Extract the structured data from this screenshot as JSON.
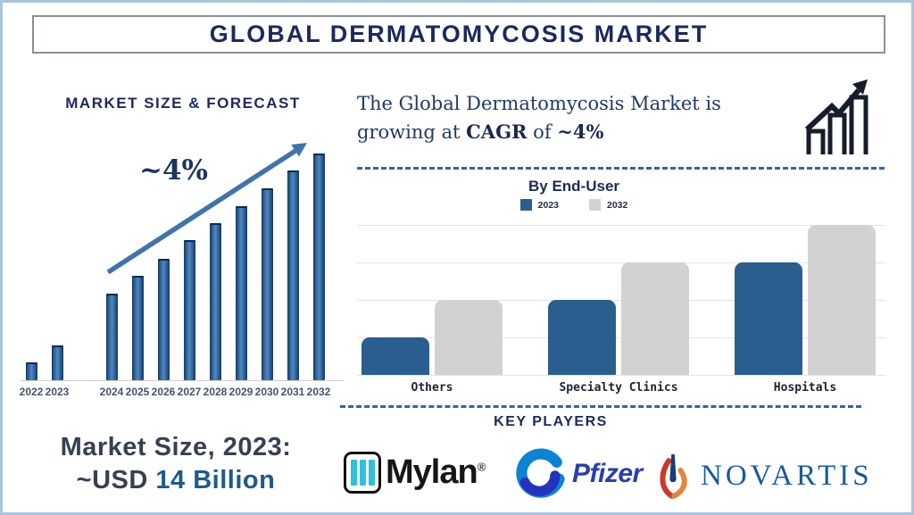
{
  "title": "GLOBAL DERMATOMYCOSIS MARKET",
  "colors": {
    "navy_heading": "#1b2a5c",
    "forecast_bar_blue": "#2e6399",
    "arrow_blue": "#3f74ab",
    "enduser_blue": "#2a5e8f",
    "enduser_gray": "#d2d2d2",
    "dashed_line_blue": "#3465a0",
    "market_size_accent": "#1e5a8c",
    "mylan_cyan": "#30c0dc",
    "pfizer_blue": "#2b3db2",
    "novartis_blue": "#155a9e",
    "novartis_flame_red": "#cc3927",
    "novartis_flame_orange": "#e2853f"
  },
  "left_panel": {
    "heading": "MARKET SIZE & FORECAST",
    "growth_annotation": "~4%",
    "market_size": {
      "line1": "Market Size, 2023:",
      "line2_prefix": "~USD ",
      "line2_value": "14 Billion"
    }
  },
  "right_panel": {
    "description": {
      "line1": "The Global Dermatomycosis Market is",
      "line2_prefix": "growing at ",
      "bold1": "CAGR",
      "mid": " of ",
      "bold2": "~4%"
    },
    "enduser_title": "By End-User",
    "legend": [
      {
        "label": "2023",
        "color": "#2a5e8f"
      },
      {
        "label": "2032",
        "color": "#d2d2d2"
      }
    ],
    "keyplayers_title": "KEY PLAYERS",
    "companies": [
      {
        "name": "Mylan",
        "reg_mark": "®"
      },
      {
        "name": "Pfizer"
      },
      {
        "name": "NOVARTIS"
      }
    ]
  },
  "chart_data": [
    {
      "type": "bar",
      "id": "market-size-forecast",
      "title": "MARKET SIZE & FORECAST",
      "categories": [
        "2022",
        "2023",
        "2024",
        "2025",
        "2026",
        "2027",
        "2028",
        "2029",
        "2030",
        "2031",
        "2032"
      ],
      "values": [
        20,
        39,
        97,
        117,
        136,
        157,
        176,
        195,
        215,
        235,
        254
      ],
      "values_note": "relative bar heights in px; no y-axis shown; 2023 market size ~USD 14 Billion, CAGR ~4%",
      "annotation": "~4%",
      "grid": false,
      "legend_position": "none"
    },
    {
      "type": "bar",
      "id": "by-end-user",
      "title": "By End-User",
      "categories": [
        "Others",
        "Specialty Clinics",
        "Hospitals"
      ],
      "series": [
        {
          "name": "2023",
          "color": "#2a5e8f",
          "values": [
            1,
            2,
            3
          ]
        },
        {
          "name": "2032",
          "color": "#d2d2d2",
          "values": [
            2,
            3,
            4
          ]
        }
      ],
      "values_note": "unlabeled y-axis; values estimated in gridline units (1 unit = 1 gridline step)",
      "ylim": [
        0,
        4
      ],
      "grid": true,
      "legend_position": "top"
    }
  ]
}
